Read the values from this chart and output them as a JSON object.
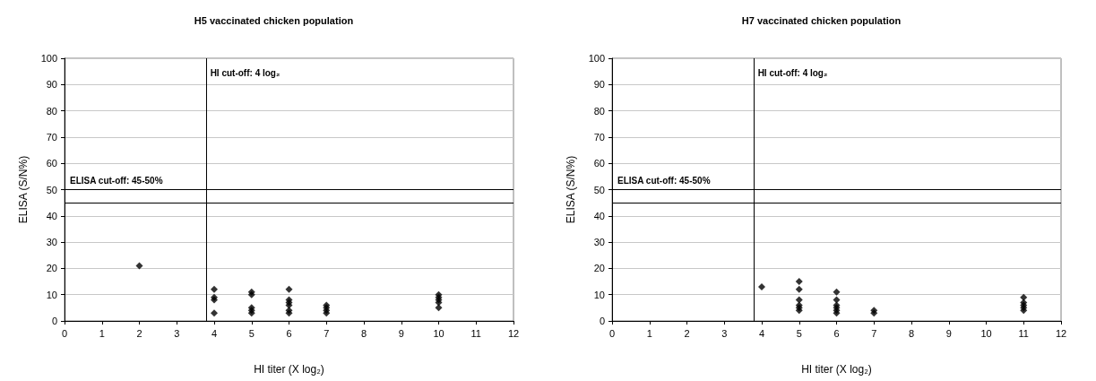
{
  "chart_data": [
    {
      "type": "scatter",
      "title": "H5 vaccinated chicken population",
      "xlabel": "HI titer (X log₂)",
      "ylabel": "ELISA (S/N%)",
      "x": [
        2,
        4,
        4,
        4,
        4,
        5,
        5,
        5,
        5,
        5,
        6,
        6,
        6,
        6,
        6,
        6,
        7,
        7,
        7,
        7,
        10,
        10,
        10,
        10,
        10
      ],
      "series": [
        {
          "color": "#000000",
          "values": [
            21,
            12,
            9,
            8,
            3,
            11,
            10,
            5,
            4,
            3,
            12,
            8,
            7,
            6,
            4,
            3,
            6,
            5,
            4,
            3,
            10,
            9,
            8,
            7,
            5
          ]
        }
      ],
      "xlim": [
        0,
        12
      ],
      "xticks": [
        0,
        1,
        2,
        3,
        4,
        5,
        6,
        7,
        8,
        9,
        10,
        11,
        12
      ],
      "ylim": [
        0,
        100
      ],
      "yticks": [
        0,
        10,
        20,
        30,
        40,
        50,
        60,
        70,
        80,
        90,
        100
      ],
      "ref_lines": [
        {
          "axis": "x",
          "value": 3.8,
          "label": "HI cut-off: 4 log₂",
          "color": "#000000"
        },
        {
          "axis": "y",
          "value": 50,
          "color": "#000000"
        },
        {
          "axis": "y",
          "value": 45,
          "color": "#000000"
        }
      ],
      "annotations": [
        {
          "text": "ELISA cut-off: 45-50%",
          "x": 0,
          "y": 50
        }
      ],
      "grid": "y",
      "marker": "diamond"
    },
    {
      "type": "scatter",
      "title": "H7 vaccinated chicken population",
      "xlabel": "HI titer (X log₂)",
      "ylabel": "ELISA (S/N%)",
      "x": [
        4,
        5,
        5,
        5,
        5,
        5,
        5,
        6,
        6,
        6,
        6,
        6,
        6,
        7,
        7,
        11,
        11,
        11,
        11,
        11
      ],
      "series": [
        {
          "color": "#000000",
          "values": [
            13,
            15,
            12,
            8,
            6,
            5,
            4,
            11,
            8,
            6,
            5,
            4,
            3,
            4,
            3,
            9,
            7,
            6,
            5,
            4
          ]
        }
      ],
      "xlim": [
        0,
        12
      ],
      "xticks": [
        0,
        1,
        2,
        3,
        4,
        5,
        6,
        7,
        8,
        9,
        10,
        11,
        12
      ],
      "ylim": [
        0,
        100
      ],
      "yticks": [
        0,
        10,
        20,
        30,
        40,
        50,
        60,
        70,
        80,
        90,
        100
      ],
      "ref_lines": [
        {
          "axis": "x",
          "value": 3.8,
          "label": "HI cut-off: 4 log₂",
          "color": "#000000"
        },
        {
          "axis": "y",
          "value": 50,
          "color": "#000000"
        },
        {
          "axis": "y",
          "value": 45,
          "color": "#000000"
        }
      ],
      "annotations": [
        {
          "text": "ELISA cut-off: 45-50%",
          "x": 0,
          "y": 50
        }
      ],
      "grid": "y",
      "marker": "diamond"
    }
  ]
}
